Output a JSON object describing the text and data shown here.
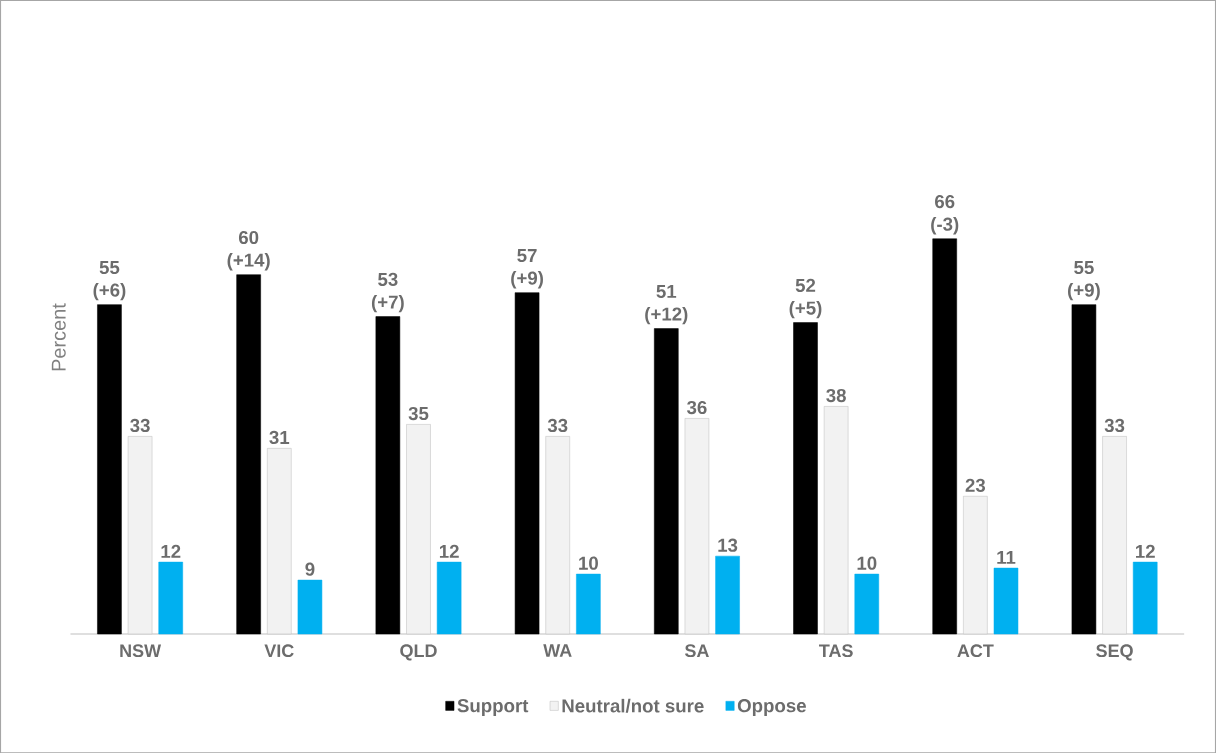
{
  "chart_data": {
    "type": "bar",
    "ylabel": "Percent",
    "categories": [
      "NSW",
      "VIC",
      "QLD",
      "WA",
      "SA",
      "TAS",
      "ACT",
      "SEQ"
    ],
    "series": [
      {
        "name": "Support",
        "color": "#000000",
        "values": [
          55,
          60,
          53,
          57,
          51,
          52,
          66,
          55
        ],
        "value_labels": [
          "55 (+6)",
          "60 (+14)",
          "53 (+7)",
          "57 (+9)",
          "51 (+12)",
          "52 (+5)",
          "66 (-3)",
          "55 (+9)"
        ]
      },
      {
        "name": "Neutral/not sure",
        "color": "#f2f2f2",
        "values": [
          33,
          31,
          35,
          33,
          36,
          38,
          23,
          33
        ],
        "value_labels": [
          "33",
          "31",
          "35",
          "33",
          "36",
          "38",
          "23",
          "33"
        ]
      },
      {
        "name": "Oppose",
        "color": "#00b0f0",
        "values": [
          12,
          9,
          12,
          10,
          13,
          10,
          11,
          12
        ],
        "value_labels": [
          "12",
          "9",
          "12",
          "10",
          "13",
          "10",
          "11",
          "12"
        ]
      }
    ],
    "legend": "bottom"
  }
}
